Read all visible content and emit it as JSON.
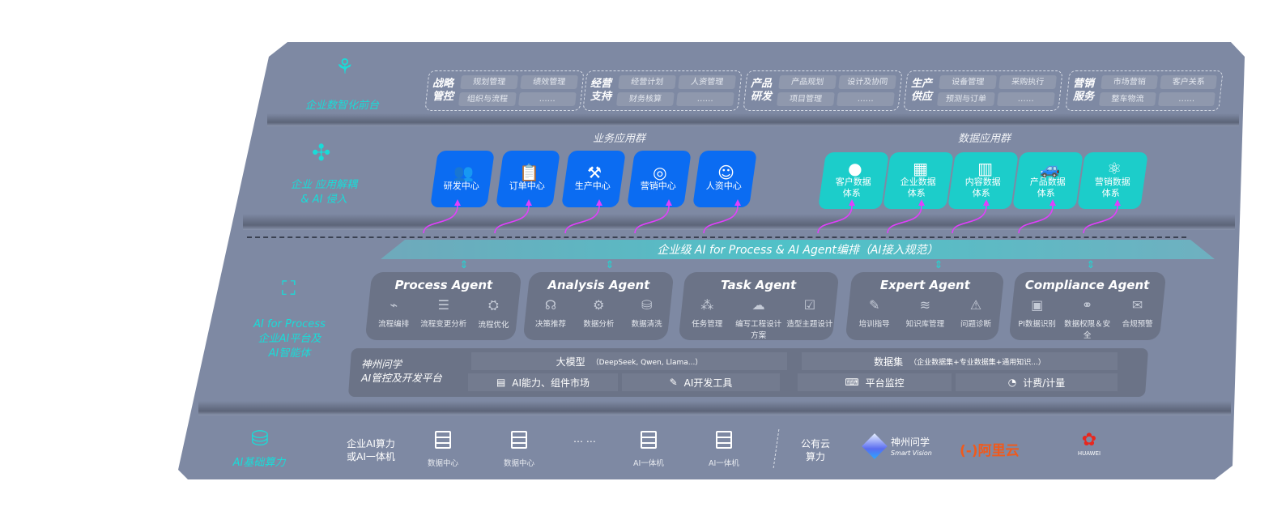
{
  "front_layer": {
    "label": "企业数智化前台",
    "icon": "brain-icon",
    "groups": [
      {
        "title": "战略管控",
        "items": [
          "规划管理",
          "绩效管理",
          "组织与流程",
          "……"
        ]
      },
      {
        "title": "经营支持",
        "items": [
          "经营计划",
          "人资管理",
          "财务核算",
          "……"
        ]
      },
      {
        "title": "产品研发",
        "items": [
          "产品规划",
          "设计及协同",
          "项目管理",
          "……"
        ]
      },
      {
        "title": "生产供应",
        "items": [
          "设备管理",
          "采购执行",
          "预测与订单",
          "……"
        ]
      },
      {
        "title": "营销服务",
        "items": [
          "市场营销",
          "客户关系",
          "整车物流",
          "……"
        ]
      }
    ]
  },
  "app_layer": {
    "label_line1": "企业 应用解耦",
    "label_line2": "& AI 侵入",
    "icon": "network-node-icon",
    "business_group": {
      "title": "业务应用群",
      "tiles": [
        {
          "label": "研发中心",
          "icon": "people-icon"
        },
        {
          "label": "订单中心",
          "icon": "clipboard-icon"
        },
        {
          "label": "生产中心",
          "icon": "factory-icon"
        },
        {
          "label": "营销中心",
          "icon": "target-icon"
        },
        {
          "label": "人资中心",
          "icon": "person-icon"
        }
      ]
    },
    "data_group": {
      "title": "数据应用群",
      "tiles": [
        {
          "l1": "客户数据",
          "l2": "体系",
          "icon": "user-icon"
        },
        {
          "l1": "企业数据",
          "l2": "体系",
          "icon": "building-icon"
        },
        {
          "l1": "内容数据",
          "l2": "体系",
          "icon": "books-icon"
        },
        {
          "l1": "产品数据",
          "l2": "体系",
          "icon": "car-icon"
        },
        {
          "l1": "营销数据",
          "l2": "体系",
          "icon": "atom-icon"
        }
      ]
    },
    "colors": {
      "business": "#0b6cf2",
      "data": "#1ccdca",
      "connector": "#e040fb"
    }
  },
  "orchestration_bar": "企业级 AI for Process & AI Agent编排（AI接入规范）",
  "ai_layer": {
    "label_en": "AI for Process",
    "label_l2": "企业AI平台及",
    "label_l3": "AI智能体",
    "icon": "face-scan-icon",
    "agents": [
      {
        "title": "Process Agent",
        "caps": [
          "流程编排",
          "流程变更分析",
          "流程优化"
        ]
      },
      {
        "title": "Analysis Agent",
        "caps": [
          "决策推荐",
          "数据分析",
          "数据清洗"
        ]
      },
      {
        "title": "Task Agent",
        "caps": [
          "任务管理",
          "编写工程设计方案",
          "造型主题设计"
        ]
      },
      {
        "title": "Expert Agent",
        "caps": [
          "培训指导",
          "知识库管理",
          "问题诊断"
        ]
      },
      {
        "title": "Compliance Agent",
        "caps": [
          "PI数据识别",
          "数据权限＆安全",
          "合规预警"
        ]
      }
    ],
    "platform": {
      "name_l1": "神州问学",
      "name_l2": "AI管控及开发平台",
      "model": "大模型",
      "model_note": "（DeepSeek, Qwen, Llama...）",
      "dataset": "数据集",
      "dataset_note": "（企业数据集+专业数据集+通用知识...）",
      "market": "AI能力、组件市场",
      "devtools": "AI开发工具",
      "monitor": "平台监控",
      "billing": "计费/计量"
    }
  },
  "compute_layer": {
    "label": "AI基础算力",
    "icon": "database-icon",
    "enterprise_l1": "企业AI算力",
    "enterprise_l2": "或AI一体机",
    "servers": [
      "数据中心",
      "数据中心",
      "AI一体机",
      "AI一体机"
    ],
    "ellipsis": "… …",
    "public_l1": "公有云",
    "public_l2": "算力",
    "vendors": {
      "smartvision_cn": "神州问学",
      "smartvision_en": "Smart Vision",
      "aliyun": "阿里云",
      "huawei": "HUAWEI"
    }
  }
}
